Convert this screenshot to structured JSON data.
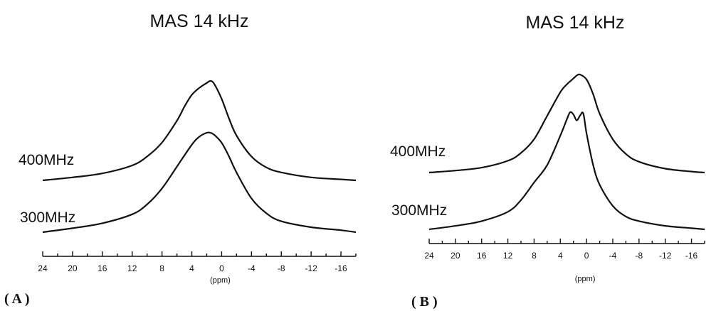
{
  "chart_data": [
    {
      "type": "line",
      "panel_label": "( A )",
      "title": "MAS 14 kHz",
      "xlabel": "(ppm)",
      "xlim": [
        24,
        -18
      ],
      "x_ticks": [
        24,
        20,
        16,
        12,
        8,
        4,
        0,
        -4,
        -8,
        -12,
        -16
      ],
      "x_tick_labels": [
        "24",
        "20",
        "16",
        "12",
        "8",
        "4",
        "0",
        "-4",
        "-8",
        "-12",
        "-16"
      ],
      "series": [
        {
          "name": "400MHz",
          "x": [
            24,
            20,
            16,
            12,
            10,
            8,
            6,
            5,
            4,
            3,
            2,
            1.5,
            1,
            0,
            -1,
            -2,
            -4,
            -6,
            -8,
            -12,
            -16,
            -18
          ],
          "y": [
            0.0,
            0.03,
            0.07,
            0.15,
            0.24,
            0.38,
            0.6,
            0.74,
            0.86,
            0.93,
            0.98,
            1.0,
            0.97,
            0.82,
            0.62,
            0.45,
            0.24,
            0.13,
            0.08,
            0.03,
            0.01,
            0.0
          ]
        },
        {
          "name": "300MHz",
          "x": [
            24,
            20,
            16,
            12,
            10,
            8,
            6,
            4,
            3,
            2,
            1.5,
            1,
            0,
            -1,
            -2,
            -4,
            -6,
            -8,
            -12,
            -16,
            -18
          ],
          "y": [
            0.0,
            0.04,
            0.09,
            0.18,
            0.28,
            0.44,
            0.66,
            0.88,
            0.96,
            1.0,
            1.0,
            0.98,
            0.9,
            0.76,
            0.6,
            0.34,
            0.19,
            0.11,
            0.05,
            0.02,
            0.0
          ]
        }
      ]
    },
    {
      "type": "line",
      "panel_label": "( B )",
      "title": "MAS 14 kHz",
      "xlabel": "(ppm)",
      "xlim": [
        24,
        -18
      ],
      "x_ticks": [
        24,
        20,
        16,
        12,
        8,
        4,
        0,
        -4,
        -8,
        -12,
        -16
      ],
      "x_tick_labels": [
        "24",
        "20",
        "16",
        "12",
        "8",
        "4",
        "0",
        "-4",
        "-8",
        "-12",
        "-16"
      ],
      "series": [
        {
          "name": "400MHz",
          "x": [
            24,
            20,
            16,
            12,
            10,
            8,
            6,
            4,
            3,
            2,
            1.5,
            1,
            0,
            -1,
            -2,
            -4,
            -6,
            -8,
            -12,
            -16,
            -18
          ],
          "y": [
            0.0,
            0.02,
            0.05,
            0.12,
            0.2,
            0.34,
            0.58,
            0.82,
            0.9,
            0.96,
            0.99,
            1.0,
            0.95,
            0.8,
            0.6,
            0.34,
            0.19,
            0.11,
            0.04,
            0.01,
            0.0
          ]
        },
        {
          "name": "300MHz",
          "x": [
            24,
            20,
            16,
            12,
            10,
            8,
            6,
            4,
            3,
            2.5,
            2,
            1.5,
            1,
            0.5,
            0,
            -1,
            -2,
            -4,
            -6,
            -8,
            -12,
            -16,
            -18
          ],
          "y": [
            0.0,
            0.03,
            0.07,
            0.15,
            0.25,
            0.4,
            0.55,
            0.8,
            0.94,
            1.0,
            0.98,
            0.93,
            0.97,
            0.99,
            0.82,
            0.55,
            0.38,
            0.2,
            0.11,
            0.07,
            0.03,
            0.01,
            0.0
          ]
        }
      ]
    }
  ]
}
